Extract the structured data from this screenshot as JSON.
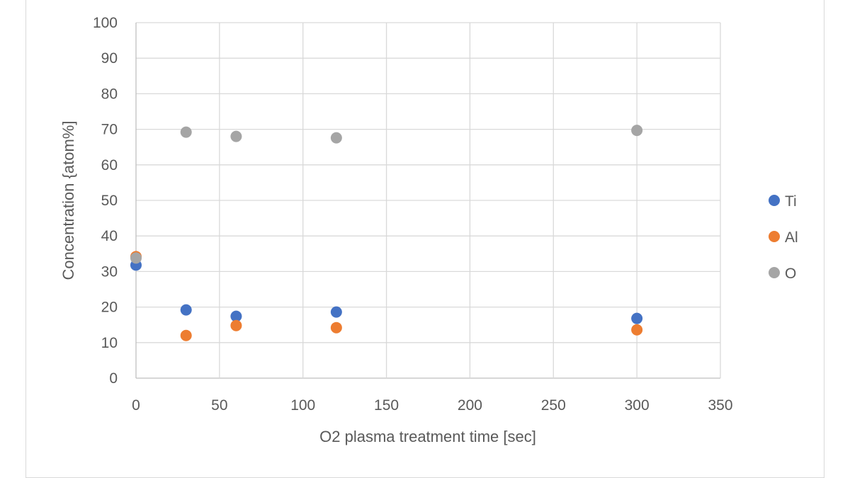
{
  "chart_data": {
    "type": "scatter",
    "title": "",
    "xlabel": "O2 plasma treatment time [sec]",
    "ylabel": "Concentration  {atom%]",
    "xlim": [
      0,
      350
    ],
    "ylim": [
      0,
      100
    ],
    "xticks": [
      0,
      50,
      100,
      150,
      200,
      250,
      300,
      350
    ],
    "yticks": [
      0,
      10,
      20,
      30,
      40,
      50,
      60,
      70,
      80,
      90,
      100
    ],
    "grid": true,
    "legend_position": "right",
    "series": [
      {
        "name": "Ti",
        "color": "#4472c4",
        "points": [
          [
            0,
            31.8
          ],
          [
            30,
            19.2
          ],
          [
            60,
            17.4
          ],
          [
            120,
            18.6
          ],
          [
            300,
            16.8
          ]
        ]
      },
      {
        "name": "Al",
        "color": "#ed7d31",
        "points": [
          [
            0,
            34.2
          ],
          [
            30,
            12.0
          ],
          [
            60,
            14.8
          ],
          [
            120,
            14.2
          ],
          [
            300,
            13.6
          ]
        ]
      },
      {
        "name": "O",
        "color": "#a5a5a5",
        "points": [
          [
            0,
            33.8
          ],
          [
            30,
            69.2
          ],
          [
            60,
            68.0
          ],
          [
            120,
            67.6
          ],
          [
            300,
            69.7
          ]
        ]
      }
    ]
  }
}
